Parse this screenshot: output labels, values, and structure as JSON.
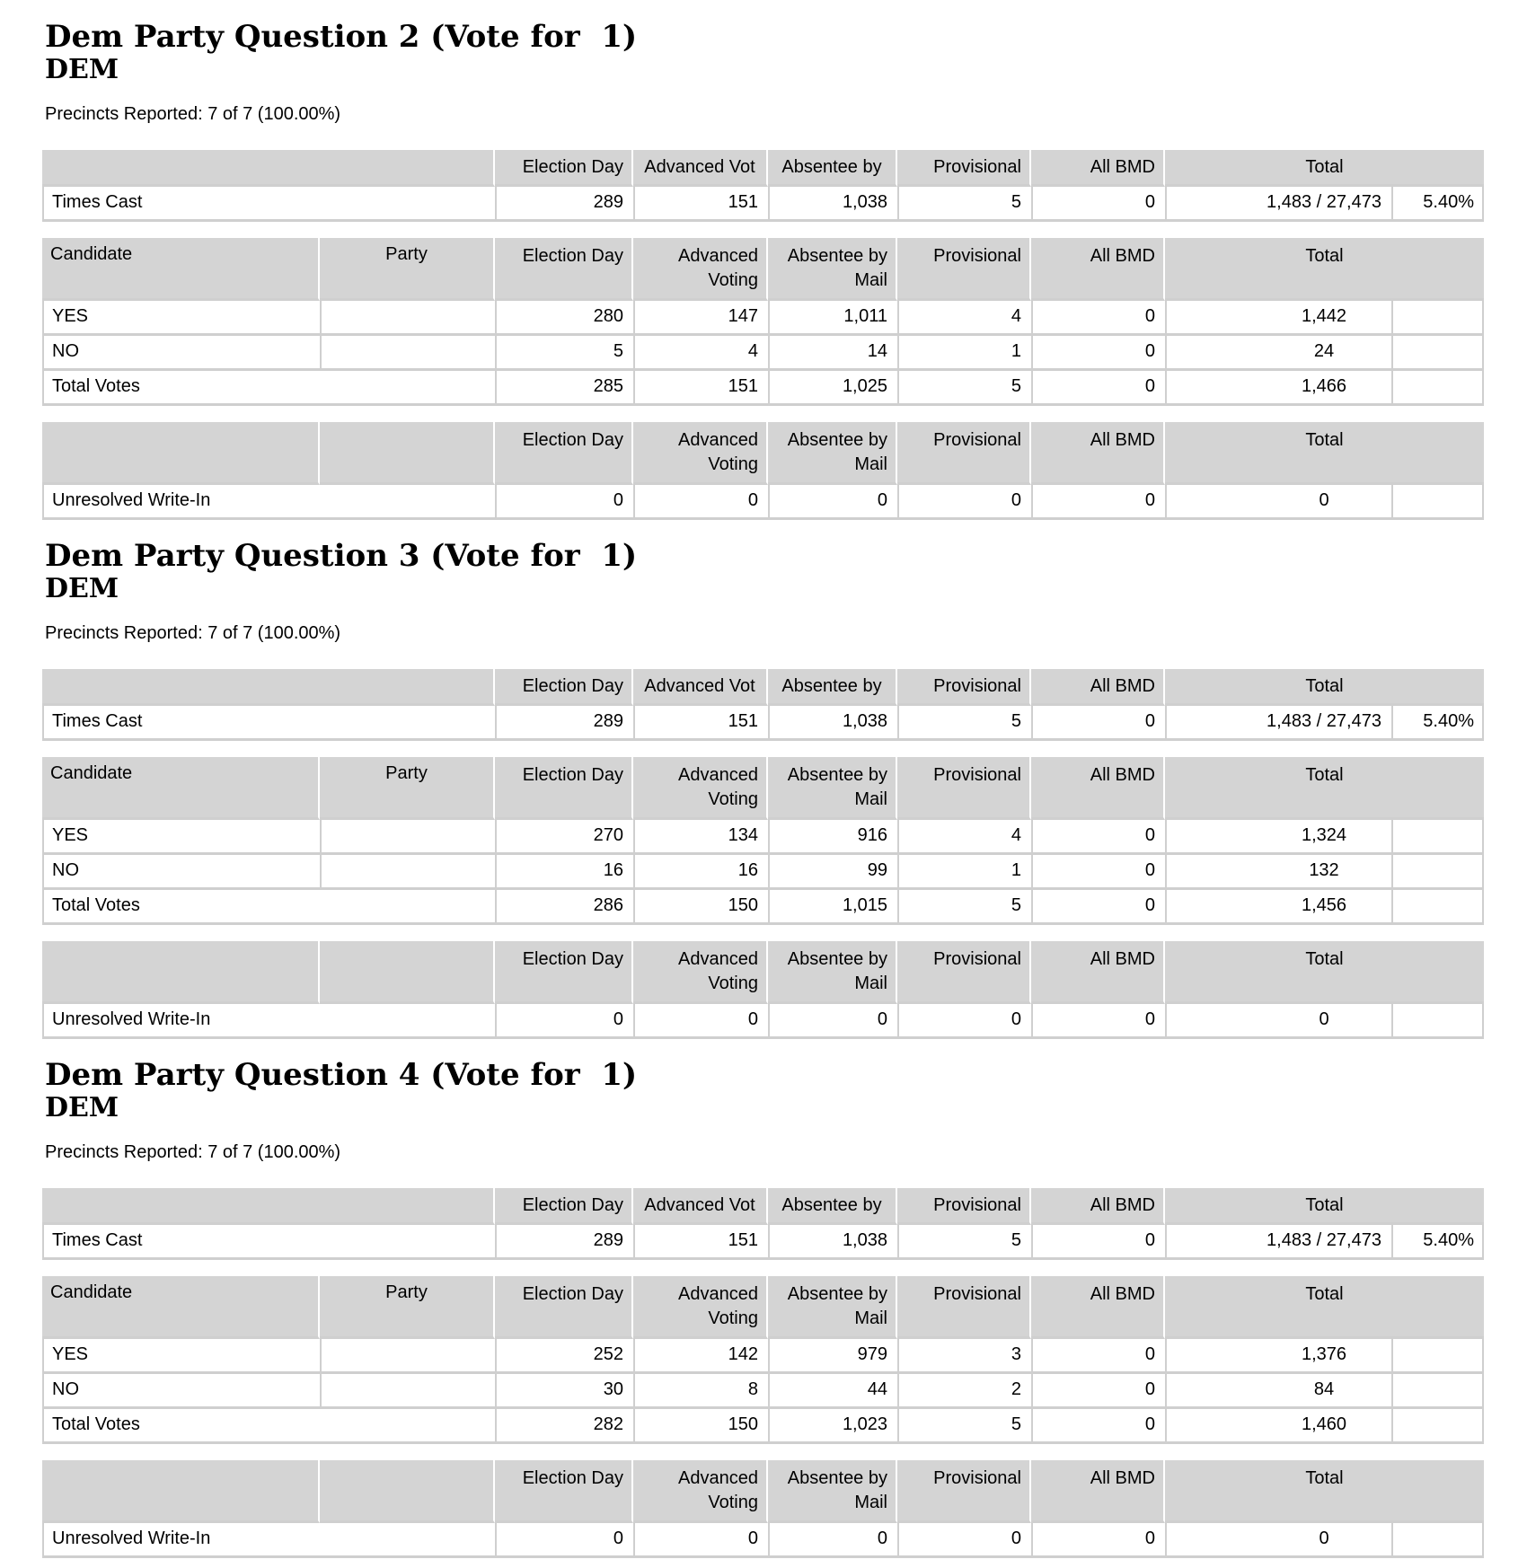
{
  "report": {
    "summary_columns": [
      "Election Day",
      "Advanced Vot",
      "Absentee by",
      "Provisional",
      "All BMD",
      "Total"
    ],
    "detail_columns": [
      {
        "line1": "Election Day",
        "line2": ""
      },
      {
        "line1": "Advanced",
        "line2": "Voting"
      },
      {
        "line1": "Absentee by",
        "line2": "Mail"
      },
      {
        "line1": "Provisional",
        "line2": ""
      },
      {
        "line1": "All BMD",
        "line2": ""
      },
      {
        "line1": "Total",
        "line2": ""
      }
    ],
    "candidate_col_label": "Candidate",
    "party_col_label": "Party",
    "colors": {
      "header_bg": "#d4d4d4",
      "grid_line": "#cfcfcf",
      "text": "#000000"
    },
    "contests": [
      {
        "title": "Dem Party Question 2 (Vote for  1)",
        "subtitle": "DEM",
        "precincts_reported": "Precincts Reported: 7 of 7 (100.00%)",
        "times_cast": {
          "label": "Times Cast",
          "election_day": "289",
          "advanced_voting": "151",
          "absentee_by_mail": "1,038",
          "provisional": "5",
          "all_bmd": "0",
          "total": "1,483 / 27,473",
          "turnout_pct": "5.40%"
        },
        "candidates": [
          {
            "name": "YES",
            "party": "",
            "election_day": "280",
            "advanced_voting": "147",
            "absentee_by_mail": "1,011",
            "provisional": "4",
            "all_bmd": "0",
            "total": "1,442"
          },
          {
            "name": "NO",
            "party": "",
            "election_day": "5",
            "advanced_voting": "4",
            "absentee_by_mail": "14",
            "provisional": "1",
            "all_bmd": "0",
            "total": "24"
          }
        ],
        "total_votes": {
          "label": "Total Votes",
          "election_day": "285",
          "advanced_voting": "151",
          "absentee_by_mail": "1,025",
          "provisional": "5",
          "all_bmd": "0",
          "total": "1,466"
        },
        "unresolved_write_in": {
          "label": "Unresolved Write-In",
          "election_day": "0",
          "advanced_voting": "0",
          "absentee_by_mail": "0",
          "provisional": "0",
          "all_bmd": "0",
          "total": "0"
        }
      },
      {
        "title": "Dem Party Question 3 (Vote for  1)",
        "subtitle": "DEM",
        "precincts_reported": "Precincts Reported: 7 of 7 (100.00%)",
        "times_cast": {
          "label": "Times Cast",
          "election_day": "289",
          "advanced_voting": "151",
          "absentee_by_mail": "1,038",
          "provisional": "5",
          "all_bmd": "0",
          "total": "1,483 / 27,473",
          "turnout_pct": "5.40%"
        },
        "candidates": [
          {
            "name": "YES",
            "party": "",
            "election_day": "270",
            "advanced_voting": "134",
            "absentee_by_mail": "916",
            "provisional": "4",
            "all_bmd": "0",
            "total": "1,324"
          },
          {
            "name": "NO",
            "party": "",
            "election_day": "16",
            "advanced_voting": "16",
            "absentee_by_mail": "99",
            "provisional": "1",
            "all_bmd": "0",
            "total": "132"
          }
        ],
        "total_votes": {
          "label": "Total Votes",
          "election_day": "286",
          "advanced_voting": "150",
          "absentee_by_mail": "1,015",
          "provisional": "5",
          "all_bmd": "0",
          "total": "1,456"
        },
        "unresolved_write_in": {
          "label": "Unresolved Write-In",
          "election_day": "0",
          "advanced_voting": "0",
          "absentee_by_mail": "0",
          "provisional": "0",
          "all_bmd": "0",
          "total": "0"
        }
      },
      {
        "title": "Dem Party Question 4 (Vote for  1)",
        "subtitle": "DEM",
        "precincts_reported": "Precincts Reported: 7 of 7 (100.00%)",
        "times_cast": {
          "label": "Times Cast",
          "election_day": "289",
          "advanced_voting": "151",
          "absentee_by_mail": "1,038",
          "provisional": "5",
          "all_bmd": "0",
          "total": "1,483 / 27,473",
          "turnout_pct": "5.40%"
        },
        "candidates": [
          {
            "name": "YES",
            "party": "",
            "election_day": "252",
            "advanced_voting": "142",
            "absentee_by_mail": "979",
            "provisional": "3",
            "all_bmd": "0",
            "total": "1,376"
          },
          {
            "name": "NO",
            "party": "",
            "election_day": "30",
            "advanced_voting": "8",
            "absentee_by_mail": "44",
            "provisional": "2",
            "all_bmd": "0",
            "total": "84"
          }
        ],
        "total_votes": {
          "label": "Total Votes",
          "election_day": "282",
          "advanced_voting": "150",
          "absentee_by_mail": "1,023",
          "provisional": "5",
          "all_bmd": "0",
          "total": "1,460"
        },
        "unresolved_write_in": {
          "label": "Unresolved Write-In",
          "election_day": "0",
          "advanced_voting": "0",
          "absentee_by_mail": "0",
          "provisional": "0",
          "all_bmd": "0",
          "total": "0"
        }
      }
    ]
  }
}
